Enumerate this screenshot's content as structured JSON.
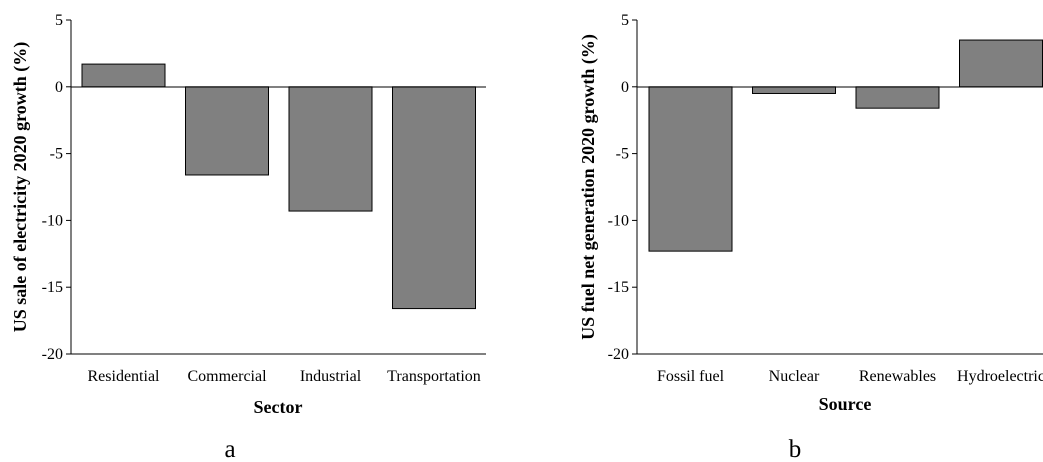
{
  "chart_data": [
    {
      "type": "bar",
      "panel_label": "a",
      "xlabel": "Sector",
      "ylabel": "US sale of electricity 2020 growth (%)",
      "categories": [
        "Residential",
        "Commercial",
        "Industrial",
        "Transportation"
      ],
      "values": [
        1.7,
        -6.6,
        -9.3,
        -16.6
      ],
      "ylim": [
        -20,
        5
      ],
      "yticks": [
        "5",
        "0",
        "-5",
        "-10",
        "-15",
        "-20"
      ],
      "bar_color": "#808080",
      "grid": false
    },
    {
      "type": "bar",
      "panel_label": "b",
      "xlabel": "Source",
      "ylabel": "US fuel net generation 2020 growth (%)",
      "categories": [
        "Fossil fuel",
        "Nuclear",
        "Renewables",
        "Hydroelectric"
      ],
      "values": [
        -12.3,
        -0.5,
        -1.6,
        3.5
      ],
      "ylim": [
        -20,
        5
      ],
      "yticks": [
        "5",
        "0",
        "-5",
        "-10",
        "-15",
        "-20"
      ],
      "bar_color": "#808080",
      "grid": false
    }
  ]
}
